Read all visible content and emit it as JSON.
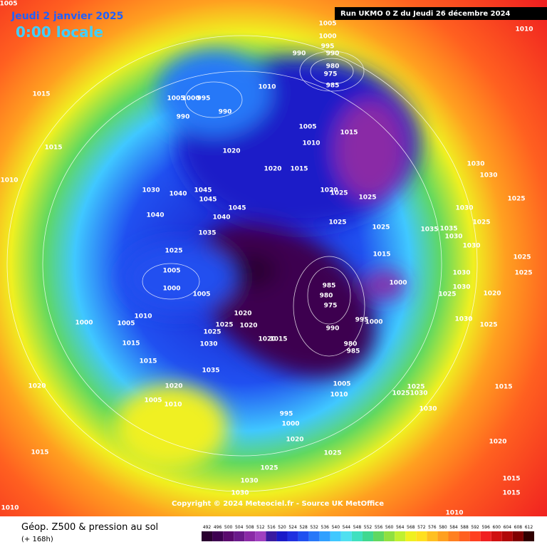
{
  "header": {
    "date": "Jeudi 2 janvier 2025",
    "time": "0:00 locale",
    "run": "Run UKMO 0 Z du Jeudi 26 décembre 2024"
  },
  "credit": "Copyright © 2024 Meteociel.fr - Source UK MetOffice",
  "footer": {
    "title": "Géop. Z500 & pression au sol",
    "subtitle": "(+ 168h)"
  },
  "colorbar": {
    "ticks": [
      492,
      496,
      500,
      504,
      508,
      512,
      516,
      520,
      524,
      528,
      532,
      536,
      540,
      544,
      548,
      552,
      556,
      560,
      564,
      568,
      572,
      576,
      580,
      584,
      588,
      592,
      596,
      600,
      604,
      608,
      612
    ],
    "colors": [
      "#2a0030",
      "#3d0050",
      "#5a0a6e",
      "#6a1a8a",
      "#8a2aa6",
      "#a040c0",
      "#3a1aa0",
      "#1a1ac8",
      "#2030e0",
      "#2050f0",
      "#2878f8",
      "#30a0ff",
      "#40c8ff",
      "#50e0f0",
      "#40e0c0",
      "#40d890",
      "#60d860",
      "#90e040",
      "#c0f030",
      "#f0f020",
      "#ffe020",
      "#ffc020",
      "#ffa020",
      "#ff8020",
      "#ff6020",
      "#ff4020",
      "#f02020",
      "#d01010",
      "#b00808",
      "#800000",
      "#300000"
    ]
  },
  "isobar_labels": [
    1005,
    1000,
    995,
    990,
    990,
    980,
    975,
    985,
    1010,
    1015,
    1005,
    1000,
    995,
    990,
    990,
    1005,
    1015,
    1010,
    1015,
    1020,
    1020,
    1015,
    1030,
    1030,
    1010,
    1030,
    1040,
    1045,
    1045,
    1020,
    1025,
    1025,
    1025,
    1045,
    1040,
    1040,
    1030,
    1025,
    1025,
    1025,
    1035,
    1035,
    1030,
    1035,
    1030,
    1025,
    1015,
    1025,
    1005,
    1030,
    1025,
    985,
    1000,
    1000,
    1005,
    980,
    1030,
    1025,
    1020,
    975,
    1020,
    995,
    1000,
    1010,
    1030,
    1000,
    1005,
    1025,
    1020,
    1025,
    990,
    1025,
    1020,
    1015,
    1015,
    1030,
    980,
    985,
    1015,
    1035,
    1005,
    1025,
    1015,
    1020,
    1020,
    1025,
    1030,
    1010,
    1005,
    1010,
    1030,
    995,
    1000,
    1020,
    1025,
    1015,
    1020,
    1025,
    1015,
    1030,
    1030,
    1015,
    1010,
    1010,
    1010,
    1005
  ]
}
